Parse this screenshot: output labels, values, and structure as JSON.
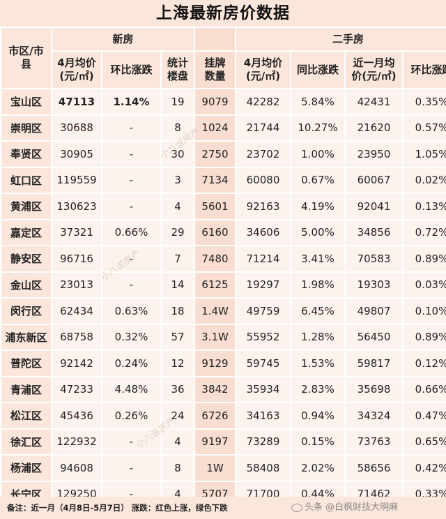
{
  "title": "上海最新房价数据",
  "headers": {
    "district": "市区/市县",
    "new_group": "新房",
    "second_group": "二手房",
    "new_price": "4月均价(元/㎡)",
    "new_mom": "环比涨跌",
    "new_count": "统计楼盘",
    "listing": "挂牌数量",
    "sh_price": "4月均价(元/㎡)",
    "sh_yoy": "同比涨跌",
    "sh_month_price": "近一月均价(元/㎡)",
    "sh_mom": "环比涨跌"
  },
  "rows": [
    {
      "district": "宝山区",
      "new_price": "47113",
      "new_mom": "1.14%",
      "count": "19",
      "listing": "9079",
      "sh_price": "42282",
      "yoy": "5.84%",
      "month_price": "42431",
      "mom": "0.35%"
    },
    {
      "district": "崇明区",
      "new_price": "30688",
      "new_mom": "-",
      "count": "8",
      "listing": "1024",
      "sh_price": "21744",
      "yoy": "10.27%",
      "month_price": "21620",
      "mom": "0.57%"
    },
    {
      "district": "奉贤区",
      "new_price": "30905",
      "new_mom": "-",
      "count": "30",
      "listing": "2750",
      "sh_price": "23702",
      "yoy": "1.00%",
      "month_price": "23950",
      "mom": "1.05%"
    },
    {
      "district": "虹口区",
      "new_price": "119559",
      "new_mom": "-",
      "count": "3",
      "listing": "7134",
      "sh_price": "60080",
      "yoy": "0.67%",
      "month_price": "60067",
      "mom": "0.02%"
    },
    {
      "district": "黄浦区",
      "new_price": "130623",
      "new_mom": "-",
      "count": "4",
      "listing": "5601",
      "sh_price": "92163",
      "yoy": "4.19%",
      "month_price": "92041",
      "mom": "0.13%"
    },
    {
      "district": "嘉定区",
      "new_price": "37321",
      "new_mom": "0.66%",
      "count": "29",
      "listing": "6160",
      "sh_price": "34606",
      "yoy": "5.00%",
      "month_price": "34856",
      "mom": "0.72%"
    },
    {
      "district": "静安区",
      "new_price": "96716",
      "new_mom": "-",
      "count": "7",
      "listing": "7480",
      "sh_price": "71214",
      "yoy": "3.41%",
      "month_price": "70583",
      "mom": "0.89%"
    },
    {
      "district": "金山区",
      "new_price": "23013",
      "new_mom": "-",
      "count": "14",
      "listing": "6125",
      "sh_price": "19297",
      "yoy": "1.98%",
      "month_price": "19303",
      "mom": "0.03%"
    },
    {
      "district": "闵行区",
      "new_price": "62434",
      "new_mom": "0.63%",
      "count": "18",
      "listing": "1.4W",
      "sh_price": "49759",
      "yoy": "6.45%",
      "month_price": "49807",
      "mom": "0.10%"
    },
    {
      "district": "浦东新区",
      "new_price": "68758",
      "new_mom": "0.32%",
      "count": "57",
      "listing": "3.1W",
      "sh_price": "55952",
      "yoy": "1.28%",
      "month_price": "56450",
      "mom": "0.89%"
    },
    {
      "district": "普陀区",
      "new_price": "92142",
      "new_mom": "0.24%",
      "count": "12",
      "listing": "9129",
      "sh_price": "59745",
      "yoy": "1.53%",
      "month_price": "59817",
      "mom": "0.12%"
    },
    {
      "district": "青浦区",
      "new_price": "47233",
      "new_mom": "4.48%",
      "count": "36",
      "listing": "3842",
      "sh_price": "35934",
      "yoy": "2.83%",
      "month_price": "35698",
      "mom": "0.66%"
    },
    {
      "district": "松江区",
      "new_price": "45436",
      "new_mom": "0.26%",
      "count": "24",
      "listing": "6726",
      "sh_price": "34163",
      "yoy": "0.94%",
      "month_price": "34324",
      "mom": "0.47%"
    },
    {
      "district": "徐汇区",
      "new_price": "122932",
      "new_mom": "-",
      "count": "4",
      "listing": "9197",
      "sh_price": "73289",
      "yoy": "0.15%",
      "month_price": "73763",
      "mom": "0.65%"
    },
    {
      "district": "杨浦区",
      "new_price": "94608",
      "new_mom": "-",
      "count": "8",
      "listing": "1W",
      "sh_price": "58408",
      "yoy": "2.02%",
      "month_price": "58656",
      "mom": "0.42%"
    },
    {
      "district": "长宁区",
      "new_price": "129250",
      "new_mom": "-",
      "count": "4",
      "listing": "5707",
      "sh_price": "71700",
      "yoy": "0.44%",
      "month_price": "71462",
      "mom": "0.33%"
    }
  ],
  "footer": "备注：近一月（4月8日-5月7日）   涨跌：红色上涨，绿色下跌",
  "watermark": "小八说房产",
  "credit": "头条 @白枫财技大明麻"
}
